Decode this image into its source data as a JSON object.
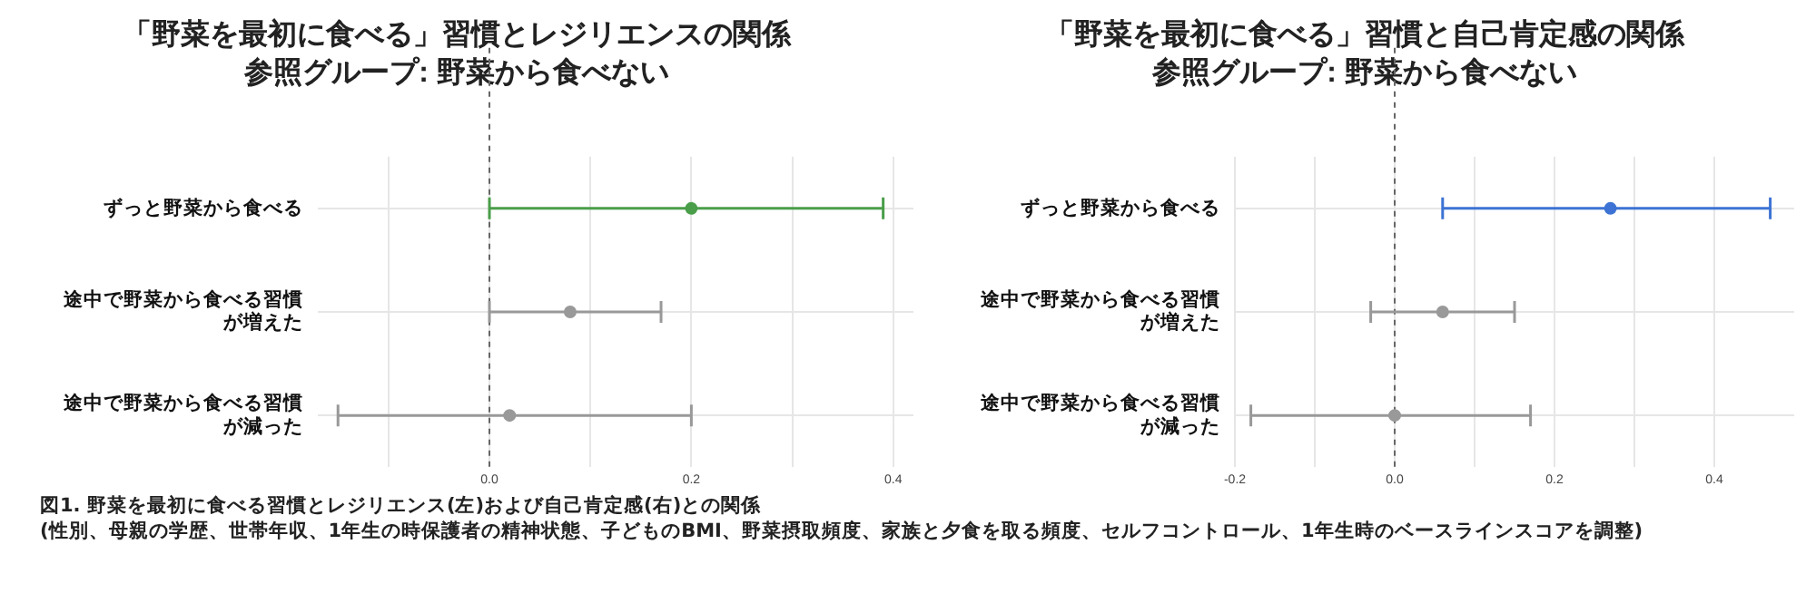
{
  "chart_data": [
    {
      "type": "scatter",
      "orientation": "horizontal",
      "title": "「野菜を最初に食べる」習慣とレジリエンスの関係",
      "subtitle": "参照グループ: 野菜から食べない",
      "categories": [
        "ずっと野菜から食べる",
        "途中で野菜から食べる習慣が増えた",
        "途中で野菜から食べる習慣が減った"
      ],
      "values": [
        0.2,
        0.08,
        0.02
      ],
      "errors": [
        [
          0.0,
          0.39
        ],
        [
          0.0,
          0.17
        ],
        [
          -0.15,
          0.2
        ]
      ],
      "colors": [
        "#4a9e4a",
        "#999999",
        "#999999"
      ],
      "marker": "circle",
      "xlim": [
        -0.17,
        0.42
      ],
      "xticks": [
        {
          "value": -0.1,
          "label": null
        },
        {
          "value": 0,
          "label": "0.0"
        },
        {
          "value": 0.1,
          "label": null
        },
        {
          "value": 0.2,
          "label": "0.2"
        },
        {
          "value": 0.3,
          "label": null
        },
        {
          "value": 0.4,
          "label": "0.4"
        }
      ],
      "grid": true,
      "ref_lines": [
        {
          "axis": "x",
          "value": 0,
          "line_style": "dashed",
          "color": "#666666"
        }
      ]
    },
    {
      "type": "scatter",
      "orientation": "horizontal",
      "title": "「野菜を最初に食べる」習慣と自己肯定感の関係",
      "subtitle": "参照グループ: 野菜から食べない",
      "categories": [
        "ずっと野菜から食べる",
        "途中で野菜から食べる習慣が増えた",
        "途中で野菜から食べる習慣が減った"
      ],
      "values": [
        0.27,
        0.06,
        0.0
      ],
      "errors": [
        [
          0.06,
          0.47
        ],
        [
          -0.03,
          0.15
        ],
        [
          -0.18,
          0.17
        ]
      ],
      "colors": [
        "#3d73d4",
        "#999999",
        "#999999"
      ],
      "marker": "circle",
      "xlim": [
        -0.2,
        0.5
      ],
      "xticks": [
        {
          "value": -0.2,
          "label": "-0.2"
        },
        {
          "value": -0.1,
          "label": null
        },
        {
          "value": 0,
          "label": "0.0"
        },
        {
          "value": 0.1,
          "label": null
        },
        {
          "value": 0.2,
          "label": "0.2"
        },
        {
          "value": 0.3,
          "label": null
        },
        {
          "value": 0.4,
          "label": "0.4"
        }
      ],
      "grid": true,
      "ref_lines": [
        {
          "axis": "x",
          "value": 0,
          "line_style": "dashed",
          "color": "#666666"
        }
      ],
      "annotations": [
        "図1. 野菜を最初に食べる習慣とレジリエンス(左)および自己肯定感(右)との関係",
        "(性別、母親の学歴、世帯年収、1年生の時保護者の精神状態、子どものBMI、野菜摂取頻度、家族と夕食を取る頻度、セルフコントロール、1年生時のベースラインスコアを調整)"
      ]
    }
  ]
}
